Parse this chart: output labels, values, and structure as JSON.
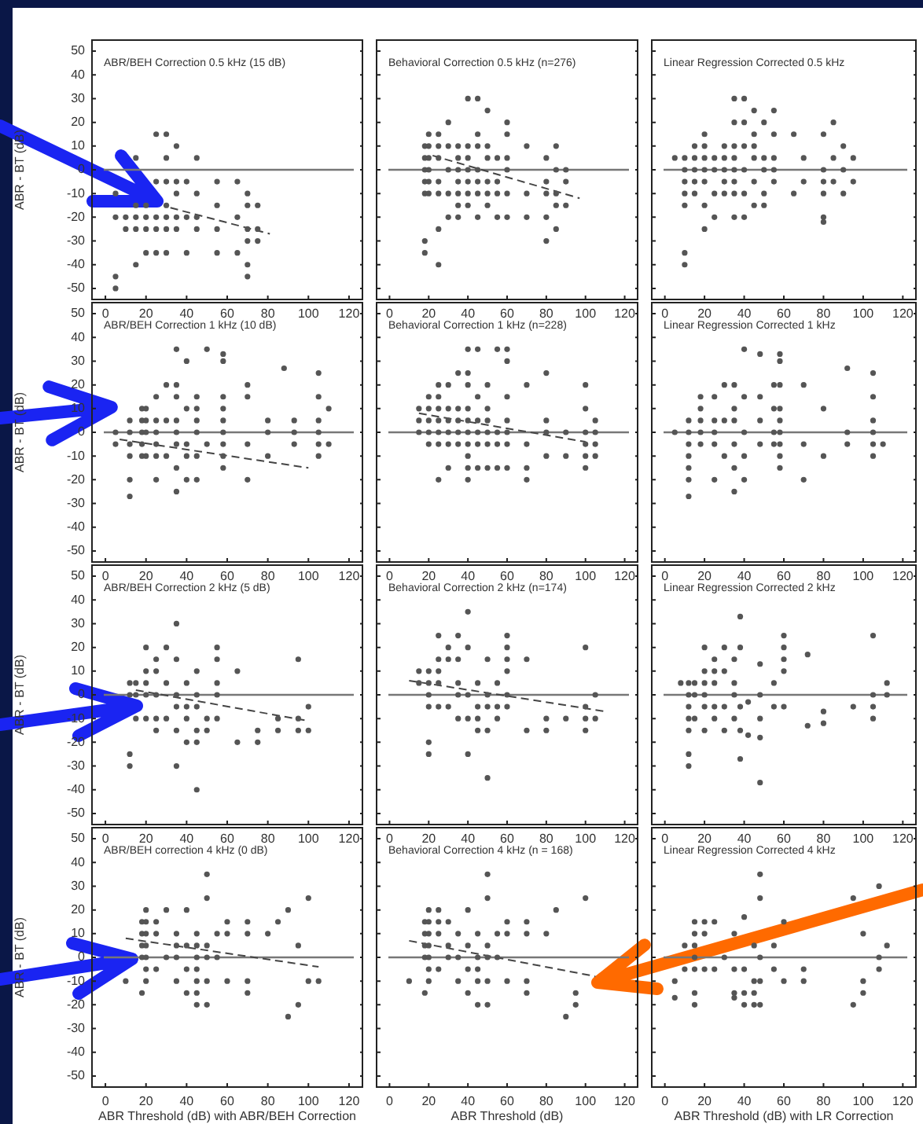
{
  "chart_data": [
    {
      "type": "scatter",
      "title": "ABR/BEH Correction 0.5 kHz (15 dB)",
      "ylabel": "ABR - BT (dB)",
      "xlim": [
        -7,
        127
      ],
      "ylim": [
        -55,
        55
      ],
      "xticks": [
        0,
        20,
        40,
        60,
        80,
        100,
        120
      ],
      "yticks": [
        -50,
        -40,
        -30,
        -20,
        -10,
        0,
        10,
        20,
        30,
        40,
        50
      ],
      "ref_lines": [
        {
          "axis": "y",
          "value": 0
        }
      ],
      "series": [
        {
          "type": "scatter",
          "color": "#555555",
          "marker": "circle",
          "x": [
            5,
            5,
            5,
            5,
            10,
            10,
            15,
            15,
            15,
            15,
            15,
            20,
            20,
            20,
            20,
            25,
            25,
            25,
            25,
            25,
            30,
            30,
            30,
            30,
            30,
            30,
            30,
            35,
            35,
            35,
            35,
            35,
            40,
            40,
            40,
            45,
            45,
            45,
            45,
            55,
            55,
            55,
            55,
            65,
            65,
            65,
            70,
            70,
            70,
            70,
            70,
            70,
            75,
            75,
            75
          ],
          "values": [
            -10,
            -20,
            -45,
            -50,
            -20,
            -25,
            5,
            -15,
            -20,
            -25,
            -40,
            -15,
            -20,
            -25,
            -35,
            15,
            -5,
            -20,
            -25,
            -35,
            15,
            5,
            -5,
            -15,
            -20,
            -25,
            -35,
            10,
            -5,
            -10,
            -20,
            -25,
            -5,
            -20,
            -35,
            5,
            -10,
            -20,
            -25,
            -5,
            -15,
            -25,
            -35,
            -5,
            -20,
            -35,
            -10,
            -15,
            -25,
            -30,
            -40,
            -45,
            -15,
            -25,
            -30
          ]
        },
        {
          "type": "line",
          "color": "#444444",
          "marker": "none",
          "line_style": "dashed",
          "x": [
            32,
            81
          ],
          "values": [
            -16,
            -27
          ]
        }
      ]
    },
    {
      "type": "scatter",
      "title": "Behavioral Correction 0.5 kHz (n=276)",
      "xlim": [
        -7,
        127
      ],
      "ylim": [
        -55,
        55
      ],
      "xticks": [
        0,
        20,
        40,
        60,
        80,
        100,
        120
      ],
      "yticks": [
        -50,
        -40,
        -30,
        -20,
        -10,
        0,
        10,
        20,
        30,
        40,
        50
      ],
      "tick_labels": "x",
      "ref_lines": [
        {
          "axis": "y",
          "value": 0
        }
      ],
      "series": [
        {
          "type": "scatter",
          "color": "#555555",
          "marker": "circle",
          "x": [
            18,
            18,
            18,
            18,
            18,
            18,
            18,
            20,
            20,
            20,
            20,
            20,
            20,
            25,
            25,
            25,
            25,
            25,
            25,
            25,
            30,
            30,
            30,
            30,
            30,
            35,
            35,
            35,
            35,
            35,
            35,
            35,
            40,
            40,
            40,
            40,
            40,
            40,
            40,
            45,
            45,
            45,
            45,
            45,
            45,
            45,
            50,
            50,
            50,
            50,
            50,
            50,
            55,
            55,
            55,
            55,
            60,
            60,
            60,
            60,
            60,
            60,
            70,
            70,
            70,
            80,
            80,
            80,
            80,
            80,
            85,
            85,
            85,
            85,
            85,
            90,
            90,
            90
          ],
          "values": [
            10,
            5,
            0,
            -5,
            -10,
            -30,
            -35,
            15,
            10,
            5,
            0,
            -5,
            -10,
            15,
            10,
            5,
            -5,
            -10,
            -25,
            -40,
            20,
            10,
            0,
            -10,
            -20,
            10,
            5,
            0,
            -5,
            -10,
            -15,
            -20,
            30,
            10,
            5,
            0,
            -5,
            -10,
            -15,
            30,
            15,
            10,
            0,
            -5,
            -10,
            -20,
            25,
            10,
            5,
            -5,
            -10,
            -15,
            5,
            -5,
            -10,
            -20,
            20,
            15,
            5,
            0,
            -10,
            -20,
            10,
            -10,
            -20,
            5,
            -5,
            -10,
            -20,
            -30,
            10,
            0,
            -10,
            -15,
            -25,
            0,
            -5,
            -15
          ]
        },
        {
          "type": "line",
          "color": "#444444",
          "marker": "none",
          "line_style": "dashed",
          "x": [
            22,
            97
          ],
          "values": [
            6,
            -12
          ]
        }
      ]
    },
    {
      "type": "scatter",
      "title": "Linear Regression Corrected 0.5 kHz",
      "xlim": [
        -7,
        127
      ],
      "ylim": [
        -55,
        55
      ],
      "xticks": [
        0,
        20,
        40,
        60,
        80,
        100,
        120
      ],
      "yticks": [
        -50,
        -40,
        -30,
        -20,
        -10,
        0,
        10,
        20,
        30,
        40,
        50
      ],
      "tick_labels": "x",
      "ref_lines": [
        {
          "axis": "y",
          "value": 0
        }
      ],
      "series": [
        {
          "type": "scatter",
          "color": "#555555",
          "marker": "circle",
          "x": [
            5,
            10,
            10,
            10,
            10,
            10,
            10,
            10,
            15,
            15,
            15,
            15,
            15,
            20,
            20,
            20,
            20,
            20,
            20,
            20,
            25,
            25,
            25,
            25,
            30,
            30,
            30,
            30,
            30,
            35,
            35,
            35,
            35,
            35,
            35,
            35,
            35,
            40,
            40,
            40,
            40,
            40,
            40,
            45,
            45,
            45,
            45,
            45,
            45,
            50,
            50,
            50,
            50,
            50,
            55,
            55,
            55,
            55,
            55,
            65,
            65,
            70,
            70,
            80,
            80,
            80,
            80,
            80,
            80,
            85,
            85,
            85,
            90,
            90,
            90,
            95,
            95
          ],
          "values": [
            5,
            5,
            0,
            -5,
            -10,
            -15,
            -35,
            -40,
            10,
            5,
            0,
            -5,
            -10,
            15,
            10,
            5,
            0,
            -5,
            -15,
            -25,
            5,
            0,
            -10,
            -20,
            10,
            5,
            0,
            -5,
            -10,
            30,
            20,
            10,
            5,
            0,
            -5,
            -10,
            -20,
            30,
            20,
            10,
            0,
            -10,
            -20,
            25,
            15,
            10,
            5,
            -5,
            -15,
            20,
            5,
            0,
            -10,
            -15,
            25,
            15,
            5,
            0,
            -5,
            15,
            -10,
            5,
            -5,
            15,
            0,
            -5,
            -10,
            -20,
            -22,
            20,
            5,
            -5,
            10,
            0,
            -10,
            5,
            -5
          ]
        }
      ]
    },
    {
      "type": "scatter",
      "title": "ABR/BEH Correction 1 kHz (10 dB)",
      "ylabel": "ABR - BT (dB)",
      "xlim": [
        -7,
        127
      ],
      "ylim": [
        -55,
        55
      ],
      "xticks": [
        0,
        20,
        40,
        60,
        80,
        100,
        120
      ],
      "yticks": [
        -50,
        -40,
        -30,
        -20,
        -10,
        0,
        10,
        20,
        30,
        40,
        50
      ],
      "ref_lines": [
        {
          "axis": "y",
          "value": 0
        }
      ],
      "series": [
        {
          "type": "scatter",
          "color": "#555555",
          "marker": "circle",
          "x": [
            5,
            5,
            12,
            12,
            12,
            12,
            12,
            12,
            18,
            18,
            18,
            18,
            18,
            20,
            20,
            20,
            20,
            25,
            25,
            25,
            25,
            25,
            25,
            30,
            30,
            30,
            35,
            35,
            35,
            35,
            35,
            35,
            35,
            35,
            40,
            40,
            40,
            40,
            40,
            45,
            45,
            45,
            45,
            45,
            45,
            50,
            50,
            58,
            58,
            58,
            58,
            58,
            58,
            58,
            58,
            58,
            70,
            70,
            70,
            70,
            80,
            80,
            80,
            88,
            93,
            93,
            93,
            105,
            105,
            105,
            105,
            105,
            105,
            110,
            110
          ],
          "values": [
            0,
            -5,
            5,
            0,
            -5,
            -10,
            -20,
            -27,
            10,
            5,
            0,
            -5,
            -10,
            10,
            5,
            0,
            -10,
            15,
            5,
            0,
            -5,
            -10,
            -20,
            20,
            5,
            -10,
            35,
            20,
            15,
            5,
            0,
            -5,
            -15,
            -25,
            30,
            10,
            -5,
            -10,
            -20,
            15,
            10,
            5,
            0,
            -10,
            -20,
            35,
            -5,
            33,
            30,
            15,
            10,
            5,
            0,
            -5,
            -10,
            -15,
            20,
            15,
            -5,
            -20,
            5,
            0,
            -10,
            27,
            5,
            0,
            -5,
            25,
            15,
            5,
            0,
            -5,
            -10,
            10,
            -5
          ]
        },
        {
          "type": "line",
          "color": "#444444",
          "marker": "none",
          "line_style": "dashed",
          "x": [
            7,
            100
          ],
          "values": [
            -3,
            -15
          ]
        }
      ]
    },
    {
      "type": "scatter",
      "title": "Behavioral Correction 1 kHz (n=228)",
      "xlim": [
        -7,
        127
      ],
      "ylim": [
        -55,
        55
      ],
      "xticks": [
        0,
        20,
        40,
        60,
        80,
        100,
        120
      ],
      "yticks": [
        -50,
        -40,
        -30,
        -20,
        -10,
        0,
        10,
        20,
        30,
        40,
        50
      ],
      "tick_labels": "x",
      "ref_lines": [
        {
          "axis": "y",
          "value": 0
        }
      ],
      "series": [
        {
          "type": "scatter",
          "color": "#555555",
          "marker": "circle",
          "x": [
            15,
            15,
            15,
            20,
            20,
            20,
            20,
            20,
            25,
            25,
            25,
            25,
            25,
            25,
            25,
            30,
            30,
            30,
            30,
            30,
            30,
            35,
            35,
            35,
            35,
            35,
            40,
            40,
            40,
            40,
            40,
            40,
            40,
            40,
            40,
            40,
            45,
            45,
            45,
            45,
            45,
            45,
            50,
            50,
            50,
            50,
            50,
            50,
            55,
            55,
            55,
            55,
            60,
            60,
            60,
            60,
            60,
            60,
            60,
            70,
            70,
            70,
            70,
            80,
            80,
            80,
            80,
            90,
            90,
            100,
            100,
            100,
            100,
            100,
            100,
            105,
            105,
            105,
            105
          ],
          "values": [
            10,
            5,
            0,
            15,
            10,
            5,
            0,
            -5,
            20,
            15,
            10,
            5,
            0,
            -5,
            -20,
            20,
            10,
            5,
            0,
            -5,
            -15,
            25,
            10,
            5,
            0,
            -5,
            35,
            25,
            20,
            10,
            5,
            0,
            -5,
            -10,
            -15,
            -20,
            35,
            15,
            5,
            0,
            -5,
            -15,
            20,
            10,
            5,
            0,
            -5,
            -15,
            35,
            0,
            -5,
            -15,
            35,
            30,
            15,
            5,
            0,
            -5,
            -15,
            20,
            -5,
            -15,
            -20,
            25,
            5,
            0,
            -10,
            0,
            -10,
            20,
            10,
            0,
            -5,
            -10,
            -15,
            5,
            0,
            -5,
            -10
          ]
        },
        {
          "type": "line",
          "color": "#444444",
          "marker": "none",
          "line_style": "dashed",
          "x": [
            15,
            100
          ],
          "values": [
            8,
            -4
          ]
        }
      ]
    },
    {
      "type": "scatter",
      "title": "Linear Regression Corrected 1 kHz",
      "xlim": [
        -7,
        127
      ],
      "ylim": [
        -55,
        55
      ],
      "xticks": [
        0,
        20,
        40,
        60,
        80,
        100,
        120
      ],
      "yticks": [
        -50,
        -40,
        -30,
        -20,
        -10,
        0,
        10,
        20,
        30,
        40,
        50
      ],
      "tick_labels": "x",
      "ref_lines": [
        {
          "axis": "y",
          "value": 0
        }
      ],
      "series": [
        {
          "type": "scatter",
          "color": "#555555",
          "marker": "circle",
          "x": [
            5,
            12,
            12,
            12,
            12,
            12,
            12,
            12,
            18,
            18,
            18,
            18,
            18,
            25,
            25,
            25,
            25,
            25,
            30,
            30,
            30,
            35,
            35,
            35,
            35,
            35,
            35,
            40,
            40,
            40,
            40,
            40,
            48,
            48,
            48,
            48,
            55,
            55,
            55,
            55,
            58,
            58,
            58,
            58,
            58,
            58,
            58,
            58,
            58,
            70,
            70,
            70,
            80,
            80,
            92,
            92,
            92,
            105,
            105,
            105,
            105,
            105,
            105,
            110
          ],
          "values": [
            0,
            5,
            0,
            -5,
            -10,
            -15,
            -20,
            -27,
            15,
            10,
            5,
            0,
            -5,
            15,
            5,
            0,
            -5,
            -20,
            20,
            5,
            -10,
            20,
            10,
            5,
            -5,
            -15,
            -25,
            35,
            15,
            0,
            -10,
            -20,
            33,
            15,
            5,
            -5,
            20,
            10,
            0,
            -5,
            33,
            30,
            20,
            10,
            5,
            0,
            -5,
            -10,
            -15,
            20,
            -5,
            -20,
            10,
            -10,
            27,
            0,
            -5,
            25,
            15,
            5,
            0,
            -5,
            -10,
            -5
          ]
        }
      ]
    },
    {
      "type": "scatter",
      "title": "ABR/BEH Correction 2 kHz (5 dB)",
      "ylabel": "ABR - BT (dB)",
      "xlim": [
        -7,
        127
      ],
      "ylim": [
        -55,
        55
      ],
      "xticks": [
        0,
        20,
        40,
        60,
        80,
        100,
        120
      ],
      "yticks": [
        -50,
        -40,
        -30,
        -20,
        -10,
        0,
        10,
        20,
        30,
        40,
        50
      ],
      "ref_lines": [
        {
          "axis": "y",
          "value": 0
        }
      ],
      "series": [
        {
          "type": "scatter",
          "color": "#555555",
          "marker": "circle",
          "x": [
            12,
            12,
            12,
            12,
            15,
            15,
            15,
            20,
            20,
            20,
            20,
            20,
            25,
            25,
            25,
            25,
            25,
            30,
            30,
            30,
            35,
            35,
            35,
            35,
            35,
            35,
            40,
            40,
            40,
            40,
            45,
            45,
            45,
            45,
            45,
            45,
            50,
            50,
            55,
            55,
            55,
            55,
            55,
            65,
            65,
            75,
            75,
            85,
            85,
            95,
            95,
            95,
            100,
            100
          ],
          "values": [
            5,
            0,
            -25,
            -30,
            5,
            0,
            -10,
            20,
            10,
            5,
            0,
            -10,
            15,
            10,
            0,
            -10,
            -15,
            20,
            5,
            -10,
            30,
            15,
            0,
            -5,
            -15,
            -30,
            5,
            -5,
            -10,
            -20,
            10,
            0,
            -5,
            -15,
            -20,
            -40,
            -10,
            -15,
            20,
            15,
            5,
            0,
            -10,
            10,
            -20,
            -15,
            -20,
            -10,
            -15,
            15,
            -10,
            -15,
            -5,
            -15
          ]
        },
        {
          "type": "line",
          "color": "#444444",
          "marker": "none",
          "line_style": "dashed",
          "x": [
            15,
            100
          ],
          "values": [
            2,
            -11
          ]
        }
      ]
    },
    {
      "type": "scatter",
      "title": "Behavioral Correction 2 kHz (n=174)",
      "xlim": [
        -7,
        127
      ],
      "ylim": [
        -55,
        55
      ],
      "xticks": [
        0,
        20,
        40,
        60,
        80,
        100,
        120
      ],
      "yticks": [
        -50,
        -40,
        -30,
        -20,
        -10,
        0,
        10,
        20,
        30,
        40,
        50
      ],
      "tick_labels": "x",
      "ref_lines": [
        {
          "axis": "y",
          "value": 0
        }
      ],
      "series": [
        {
          "type": "scatter",
          "color": "#555555",
          "marker": "circle",
          "x": [
            15,
            15,
            20,
            20,
            20,
            20,
            20,
            20,
            25,
            25,
            25,
            25,
            25,
            30,
            30,
            30,
            35,
            35,
            35,
            35,
            35,
            40,
            40,
            40,
            40,
            40,
            45,
            45,
            45,
            45,
            50,
            50,
            50,
            50,
            50,
            55,
            55,
            55,
            60,
            60,
            60,
            60,
            60,
            60,
            70,
            70,
            80,
            80,
            90,
            100,
            100,
            100,
            100,
            105,
            105
          ],
          "values": [
            10,
            5,
            10,
            5,
            0,
            -5,
            -20,
            -25,
            25,
            15,
            10,
            5,
            -5,
            20,
            15,
            -5,
            25,
            15,
            5,
            0,
            -10,
            35,
            20,
            0,
            -10,
            -25,
            5,
            -5,
            -10,
            -15,
            15,
            0,
            -5,
            -15,
            -35,
            5,
            -5,
            -10,
            25,
            20,
            15,
            10,
            0,
            -5,
            15,
            -15,
            -10,
            -15,
            -10,
            20,
            -5,
            -10,
            -15,
            0,
            -10
          ]
        },
        {
          "type": "line",
          "color": "#444444",
          "marker": "none",
          "line_style": "dashed",
          "x": [
            10,
            110
          ],
          "values": [
            6,
            -7
          ]
        }
      ]
    },
    {
      "type": "scatter",
      "title": "Linear Regression Corrected 2 kHz",
      "xlim": [
        -7,
        127
      ],
      "ylim": [
        -55,
        55
      ],
      "xticks": [
        0,
        20,
        40,
        60,
        80,
        100,
        120
      ],
      "yticks": [
        -50,
        -40,
        -30,
        -20,
        -10,
        0,
        10,
        20,
        30,
        40,
        50
      ],
      "tick_labels": "x",
      "ref_lines": [
        {
          "axis": "y",
          "value": 0
        }
      ],
      "series": [
        {
          "type": "scatter",
          "color": "#555555",
          "marker": "circle",
          "x": [
            8,
            12,
            12,
            12,
            12,
            12,
            12,
            12,
            15,
            15,
            15,
            20,
            20,
            20,
            20,
            20,
            20,
            25,
            25,
            25,
            25,
            25,
            30,
            30,
            30,
            30,
            35,
            35,
            35,
            35,
            38,
            38,
            38,
            38,
            38,
            42,
            42,
            48,
            48,
            48,
            48,
            48,
            55,
            55,
            60,
            60,
            60,
            60,
            60,
            72,
            72,
            80,
            80,
            95,
            105,
            105,
            105,
            105,
            112,
            112
          ],
          "values": [
            5,
            5,
            0,
            -5,
            -10,
            -15,
            -25,
            -30,
            5,
            0,
            -10,
            20,
            10,
            5,
            0,
            -5,
            -15,
            15,
            10,
            5,
            -5,
            -10,
            20,
            10,
            -5,
            -15,
            15,
            5,
            0,
            -10,
            33,
            20,
            -5,
            -15,
            -27,
            -3,
            -17,
            13,
            0,
            -10,
            -18,
            -37,
            5,
            -5,
            25,
            20,
            15,
            10,
            -5,
            17,
            -13,
            -7,
            -12,
            -5,
            25,
            0,
            -5,
            -10,
            5,
            0
          ]
        }
      ]
    },
    {
      "type": "scatter",
      "title": "ABR/BEH correction 4 kHz (0 dB)",
      "ylabel": "ABR - BT (dB)",
      "xlabel": "ABR Threshold (dB) with ABR/BEH Correction",
      "xlim": [
        -7,
        127
      ],
      "ylim": [
        -55,
        55
      ],
      "xticks": [
        0,
        20,
        40,
        60,
        80,
        100,
        120
      ],
      "yticks": [
        -50,
        -40,
        -30,
        -20,
        -10,
        0,
        10,
        20,
        30,
        40,
        50
      ],
      "ref_lines": [
        {
          "axis": "y",
          "value": 0
        }
      ],
      "series": [
        {
          "type": "scatter",
          "color": "#555555",
          "marker": "circle",
          "x": [
            10,
            18,
            18,
            18,
            18,
            18,
            20,
            20,
            20,
            20,
            20,
            20,
            20,
            25,
            25,
            25,
            30,
            30,
            35,
            35,
            35,
            35,
            40,
            40,
            40,
            40,
            45,
            45,
            45,
            45,
            45,
            45,
            45,
            50,
            50,
            50,
            50,
            50,
            50,
            55,
            55,
            60,
            60,
            60,
            70,
            70,
            70,
            70,
            80,
            85,
            90,
            90,
            95,
            95,
            100,
            100,
            105
          ],
          "values": [
            -10,
            15,
            10,
            5,
            0,
            -15,
            20,
            15,
            10,
            5,
            0,
            -5,
            -10,
            15,
            10,
            -5,
            20,
            0,
            10,
            5,
            0,
            -10,
            20,
            5,
            -5,
            -15,
            10,
            5,
            0,
            -5,
            -10,
            -15,
            -20,
            35,
            25,
            5,
            0,
            -10,
            -20,
            10,
            0,
            15,
            10,
            -10,
            15,
            10,
            -10,
            -15,
            10,
            15,
            20,
            -25,
            5,
            -20,
            25,
            -10,
            -10
          ]
        },
        {
          "type": "line",
          "color": "#444444",
          "marker": "none",
          "line_style": "dashed",
          "x": [
            10,
            105
          ],
          "values": [
            8,
            -4
          ]
        }
      ]
    },
    {
      "type": "scatter",
      "title": "Behavioral Correction 4 kHz (n = 168)",
      "xlabel": "ABR Threshold (dB)",
      "xlim": [
        -7,
        127
      ],
      "ylim": [
        -55,
        55
      ],
      "xticks": [
        0,
        20,
        40,
        60,
        80,
        100,
        120
      ],
      "yticks": [
        -50,
        -40,
        -30,
        -20,
        -10,
        0,
        10,
        20,
        30,
        40,
        50
      ],
      "tick_labels": "x",
      "ref_lines": [
        {
          "axis": "y",
          "value": 0
        }
      ],
      "series": [
        {
          "type": "scatter",
          "color": "#555555",
          "marker": "circle",
          "x": [
            10,
            18,
            18,
            18,
            18,
            18,
            20,
            20,
            20,
            20,
            20,
            20,
            20,
            25,
            25,
            25,
            25,
            30,
            30,
            30,
            35,
            35,
            35,
            40,
            40,
            40,
            40,
            45,
            45,
            45,
            45,
            45,
            50,
            50,
            50,
            50,
            50,
            50,
            55,
            55,
            60,
            60,
            60,
            70,
            70,
            70,
            70,
            80,
            85,
            90,
            95,
            95,
            100
          ],
          "values": [
            -10,
            15,
            10,
            5,
            0,
            -15,
            20,
            15,
            10,
            5,
            0,
            -5,
            -10,
            20,
            15,
            10,
            -5,
            15,
            5,
            0,
            10,
            0,
            -10,
            20,
            5,
            -5,
            -15,
            10,
            0,
            -5,
            -10,
            -20,
            35,
            25,
            5,
            0,
            -10,
            -20,
            10,
            0,
            15,
            10,
            -10,
            15,
            10,
            -10,
            -15,
            10,
            20,
            -25,
            -15,
            -20,
            25
          ]
        },
        {
          "type": "line",
          "color": "#444444",
          "marker": "none",
          "line_style": "dashed",
          "x": [
            10,
            105
          ],
          "values": [
            7,
            -8
          ]
        }
      ]
    },
    {
      "type": "scatter",
      "title": "Linear Regression Corrected 4 kHz",
      "xlabel": "ABR Threshold (dB) with LR Correction",
      "xlim": [
        -7,
        127
      ],
      "ylim": [
        -55,
        55
      ],
      "xticks": [
        0,
        20,
        40,
        60,
        80,
        100,
        120
      ],
      "yticks": [
        -50,
        -40,
        -30,
        -20,
        -10,
        0,
        10,
        20,
        30,
        40,
        50
      ],
      "tick_labels": "x",
      "ref_lines": [
        {
          "axis": "y",
          "value": 0
        }
      ],
      "series": [
        {
          "type": "scatter",
          "color": "#555555",
          "marker": "circle",
          "x": [
            5,
            5,
            10,
            10,
            15,
            15,
            15,
            15,
            15,
            15,
            15,
            20,
            20,
            20,
            25,
            25,
            30,
            35,
            35,
            35,
            35,
            40,
            40,
            40,
            40,
            45,
            45,
            45,
            45,
            48,
            48,
            48,
            48,
            48,
            55,
            55,
            60,
            60,
            70,
            70,
            95,
            95,
            100,
            100,
            100,
            108,
            108,
            108,
            112
          ],
          "values": [
            -10,
            -17,
            5,
            -5,
            15,
            10,
            5,
            0,
            -5,
            -15,
            -20,
            15,
            10,
            -5,
            15,
            -5,
            0,
            10,
            -5,
            -15,
            -17,
            17,
            -5,
            -15,
            -20,
            5,
            -10,
            -15,
            -20,
            35,
            25,
            0,
            -10,
            -20,
            5,
            -5,
            15,
            -10,
            -5,
            -10,
            25,
            -20,
            10,
            -10,
            -15,
            30,
            0,
            -5,
            5
          ]
        }
      ]
    }
  ]
}
